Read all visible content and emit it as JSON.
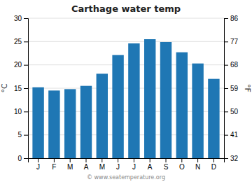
{
  "chart_data": {
    "type": "bar",
    "title": "Carthage water temp",
    "categories": [
      "J",
      "F",
      "M",
      "A",
      "M",
      "J",
      "J",
      "A",
      "S",
      "O",
      "N",
      "D"
    ],
    "values": [
      15.2,
      14.5,
      14.8,
      15.5,
      18.1,
      22.1,
      24.6,
      25.5,
      24.9,
      22.7,
      20.3,
      17.0
    ],
    "ylim": [
      0,
      30
    ],
    "yticks": [
      0,
      5,
      10,
      15,
      20,
      25,
      30
    ],
    "y2lim": [
      32,
      86
    ],
    "y2ticks": [
      32,
      41,
      50,
      59,
      68,
      77,
      86
    ],
    "ylabel": "°C",
    "y2label": "°F",
    "annotations": [
      "© www.seatemperature.org"
    ],
    "grid": true
  }
}
